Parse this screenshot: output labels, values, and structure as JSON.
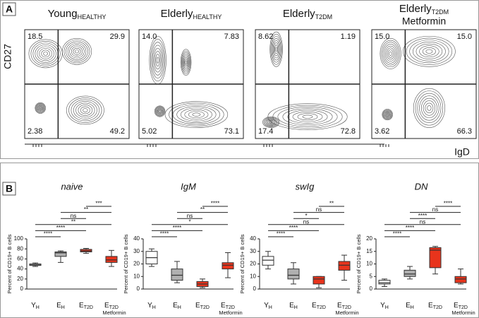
{
  "panel_a": {
    "label": "A",
    "y_label": "CD27",
    "x_label": "IgD",
    "plots": [
      {
        "title": {
          "main": "Young",
          "sub": "HEALTHY"
        },
        "quadrants": [
          "18.5",
          "29.9",
          "2.38",
          "49.2"
        ]
      },
      {
        "title": {
          "main": "Elderly",
          "sub": "HEALTHY"
        },
        "quadrants": [
          "14.0",
          "7.83",
          "5.02",
          "73.1"
        ]
      },
      {
        "title": {
          "main": "Elderly",
          "sub": "T2DM"
        },
        "quadrants": [
          "8.62",
          "1.19",
          "17.4",
          "72.8"
        ]
      },
      {
        "title": {
          "main": "Elderly",
          "sub": "T2DM",
          "line2": "Metformin"
        },
        "quadrants": [
          "15.0",
          "15.0",
          "3.62",
          "66.3"
        ]
      }
    ]
  },
  "panel_b_label": "B",
  "chart_data": [
    {
      "type": "box",
      "title": "naive",
      "y_label": "Percent of CD19+ B cells",
      "categories": [
        {
          "main": "Y",
          "sub": "H"
        },
        {
          "main": "E",
          "sub": "H"
        },
        {
          "main": "E",
          "sub": "T2D"
        },
        {
          "main": "E",
          "sub": "T2D",
          "note": "Metformin"
        }
      ],
      "boxes": [
        {
          "min": 45,
          "q1": 47,
          "median": 48,
          "q3": 50,
          "max": 52,
          "color": "#ffffff"
        },
        {
          "min": 53,
          "q1": 65,
          "median": 72,
          "q3": 74,
          "max": 76,
          "color": "#b0b0b0"
        },
        {
          "min": 71,
          "q1": 74,
          "median": 76,
          "q3": 79,
          "max": 81,
          "color": "#e8341c"
        },
        {
          "min": 45,
          "q1": 53,
          "median": 58,
          "q3": 65,
          "max": 77,
          "color": "#e8341c"
        }
      ],
      "ylim": [
        0,
        100
      ],
      "yticks": [
        0,
        20,
        40,
        60,
        80,
        100
      ],
      "comparisons": [
        {
          "groups": [
            2,
            3
          ],
          "label": "***"
        },
        {
          "groups": [
            1,
            3
          ],
          "label": "**"
        },
        {
          "groups": [
            1,
            2
          ],
          "label": "ns"
        },
        {
          "groups": [
            0,
            3
          ],
          "label": "**"
        },
        {
          "groups": [
            0,
            2
          ],
          "label": "****"
        },
        {
          "groups": [
            0,
            1
          ],
          "label": "****"
        }
      ]
    },
    {
      "type": "box",
      "title": "IgM",
      "y_label": "Percent of CD19+ B cells",
      "categories": [
        {
          "main": "Y",
          "sub": "H"
        },
        {
          "main": "E",
          "sub": "H"
        },
        {
          "main": "E",
          "sub": "T2D"
        },
        {
          "main": "E",
          "sub": "T2D",
          "note": "Metformin"
        }
      ],
      "boxes": [
        {
          "min": 18,
          "q1": 20,
          "median": 25,
          "q3": 30,
          "max": 32,
          "color": "#ffffff"
        },
        {
          "min": 5,
          "q1": 7,
          "median": 11,
          "q3": 16,
          "max": 22,
          "color": "#b0b0b0"
        },
        {
          "min": 1,
          "q1": 2,
          "median": 4,
          "q3": 6,
          "max": 8,
          "color": "#e8341c"
        },
        {
          "min": 9,
          "q1": 16,
          "median": 19,
          "q3": 21,
          "max": 29,
          "color": "#e8341c"
        }
      ],
      "ylim": [
        0,
        40
      ],
      "yticks": [
        0,
        10,
        20,
        30,
        40
      ],
      "comparisons": [
        {
          "groups": [
            2,
            3
          ],
          "label": "****"
        },
        {
          "groups": [
            1,
            3
          ],
          "label": "**"
        },
        {
          "groups": [
            1,
            2
          ],
          "label": "ns"
        },
        {
          "groups": [
            0,
            3
          ],
          "label": "*"
        },
        {
          "groups": [
            0,
            2
          ],
          "label": "****"
        },
        {
          "groups": [
            0,
            1
          ],
          "label": "****"
        }
      ]
    },
    {
      "type": "box",
      "title": "swIg",
      "y_label": "Percent of CD19+ B cells",
      "categories": [
        {
          "main": "Y",
          "sub": "H"
        },
        {
          "main": "E",
          "sub": "H"
        },
        {
          "main": "E",
          "sub": "T2D"
        },
        {
          "main": "E",
          "sub": "T2D",
          "note": "Metformin"
        }
      ],
      "boxes": [
        {
          "min": 16,
          "q1": 19,
          "median": 23,
          "q3": 26,
          "max": 30,
          "color": "#ffffff"
        },
        {
          "min": 4,
          "q1": 8,
          "median": 11,
          "q3": 16,
          "max": 21,
          "color": "#b0b0b0"
        },
        {
          "min": 1,
          "q1": 4,
          "median": 8,
          "q3": 10,
          "max": 10,
          "color": "#e8341c"
        },
        {
          "min": 7,
          "q1": 15,
          "median": 19,
          "q3": 22,
          "max": 27,
          "color": "#e8341c"
        }
      ],
      "ylim": [
        0,
        40
      ],
      "yticks": [
        0,
        10,
        20,
        30,
        40
      ],
      "comparisons": [
        {
          "groups": [
            2,
            3
          ],
          "label": "**"
        },
        {
          "groups": [
            1,
            3
          ],
          "label": "ns"
        },
        {
          "groups": [
            1,
            2
          ],
          "label": "*"
        },
        {
          "groups": [
            0,
            3
          ],
          "label": "ns"
        },
        {
          "groups": [
            0,
            2
          ],
          "label": "****"
        },
        {
          "groups": [
            0,
            1
          ],
          "label": "****"
        }
      ]
    },
    {
      "type": "box",
      "title": "DN",
      "y_label": "Percent of CD19+ B cells",
      "categories": [
        {
          "main": "Y",
          "sub": "H"
        },
        {
          "main": "E",
          "sub": "H"
        },
        {
          "main": "E",
          "sub": "T2D"
        },
        {
          "main": "E",
          "sub": "T2D",
          "note": "Metformin"
        }
      ],
      "boxes": [
        {
          "min": 1,
          "q1": 2,
          "median": 2.5,
          "q3": 3.5,
          "max": 4,
          "color": "#ffffff"
        },
        {
          "min": 4,
          "q1": 5,
          "median": 6,
          "q3": 7.5,
          "max": 9,
          "color": "#b0b0b0"
        },
        {
          "min": 6,
          "q1": 8.5,
          "median": 15.5,
          "q3": 16.5,
          "max": 17,
          "color": "#e8341c"
        },
        {
          "min": 2,
          "q1": 2.5,
          "median": 4,
          "q3": 5,
          "max": 8,
          "color": "#e8341c"
        }
      ],
      "ylim": [
        0,
        20
      ],
      "yticks": [
        0,
        5,
        10,
        15,
        20
      ],
      "comparisons": [
        {
          "groups": [
            2,
            3
          ],
          "label": "****"
        },
        {
          "groups": [
            1,
            3
          ],
          "label": "ns"
        },
        {
          "groups": [
            1,
            2
          ],
          "label": "****"
        },
        {
          "groups": [
            0,
            3
          ],
          "label": "ns"
        },
        {
          "groups": [
            0,
            2
          ],
          "label": "****"
        },
        {
          "groups": [
            0,
            1
          ],
          "label": "****"
        }
      ]
    }
  ]
}
